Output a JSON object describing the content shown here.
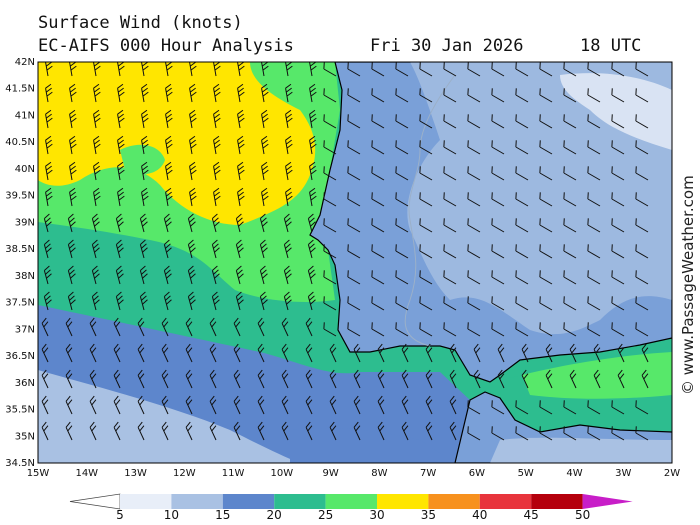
{
  "header": {
    "title": "Surface Wind (knots)",
    "model": "EC-AIFS 000 Hour Analysis",
    "date": "Fri 30 Jan 2026",
    "time": "18 UTC"
  },
  "watermark": "© www.PassageWeather.com",
  "map": {
    "lon_range": [
      -15,
      -2
    ],
    "lat_range": [
      34.5,
      42
    ],
    "lat_ticks": [
      "42N",
      "41.5N",
      "41N",
      "40.5N",
      "40N",
      "39.5N",
      "39N",
      "38.5N",
      "38N",
      "37.5N",
      "37N",
      "36.5N",
      "36N",
      "35.5N",
      "35N",
      "34.5N"
    ],
    "lon_ticks": [
      "15W",
      "14W",
      "13W",
      "12W",
      "11W",
      "10W",
      "9W",
      "8W",
      "7W",
      "6W",
      "5W",
      "4W",
      "3W",
      "2W"
    ],
    "land_color": "#ffffff"
  },
  "legend": {
    "labels": [
      "5",
      "10",
      "15",
      "20",
      "25",
      "30",
      "35",
      "40",
      "45",
      "50"
    ],
    "colors": [
      "#e8eef8",
      "#a9c1e3",
      "#5d86cc",
      "#2dbd8f",
      "#57e86a",
      "#ffe600",
      "#f7911e",
      "#e8343c",
      "#b5000d",
      "#c81ec8"
    ]
  }
}
